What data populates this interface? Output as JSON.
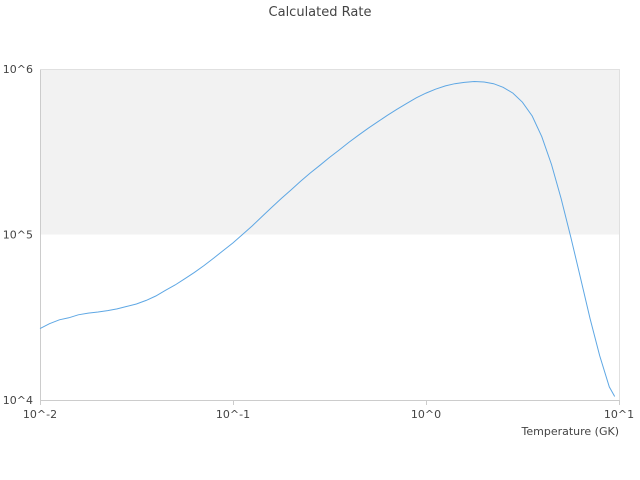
{
  "chart_data": {
    "type": "line",
    "title": "Calculated Rate",
    "xlabel": "Temperature (GK)",
    "ylabel": "",
    "xscale": "log",
    "yscale": "log",
    "xlim": [
      0.01,
      10
    ],
    "ylim": [
      10000,
      1000000
    ],
    "x_tick_labels": [
      "10^-2",
      "10^-1",
      "10^0",
      "10^1"
    ],
    "y_tick_labels": [
      "10^4",
      "10^5",
      "10^6"
    ],
    "band_color": "#f2f2f2",
    "line_color": "#5ea7e4",
    "grid": false,
    "legend": "none",
    "series": [
      {
        "values_x": [
          0.01,
          0.0112,
          0.0126,
          0.0141,
          0.0158,
          0.0178,
          0.02,
          0.0224,
          0.0251,
          0.0282,
          0.0316,
          0.0355,
          0.0398,
          0.0447,
          0.0501,
          0.0562,
          0.0631,
          0.0708,
          0.0794,
          0.0891,
          0.1,
          0.112,
          0.126,
          0.141,
          0.158,
          0.178,
          0.2,
          0.224,
          0.251,
          0.282,
          0.316,
          0.355,
          0.398,
          0.447,
          0.501,
          0.562,
          0.631,
          0.708,
          0.794,
          0.891,
          1.0,
          1.12,
          1.26,
          1.41,
          1.58,
          1.78,
          2.0,
          2.24,
          2.51,
          2.82,
          3.16,
          3.55,
          3.98,
          4.47,
          5.01,
          5.62,
          6.31,
          7.08,
          7.94,
          8.91,
          9.5
        ],
        "values_y": [
          27000,
          28900,
          30500,
          31400,
          32700,
          33500,
          34000,
          34700,
          35500,
          36800,
          38000,
          40000,
          42500,
          46000,
          49500,
          54000,
          59000,
          65000,
          72000,
          80000,
          89000,
          100000,
          113000,
          128000,
          145000,
          165000,
          186000,
          210000,
          235000,
          262000,
          292000,
          324000,
          360000,
          398000,
          438000,
          480000,
          525000,
          572000,
          620000,
          670000,
          715000,
          755000,
          790000,
          815000,
          830000,
          840000,
          835000,
          815000,
          775000,
          715000,
          630000,
          520000,
          390000,
          265000,
          165000,
          97000,
          55000,
          31000,
          18500,
          12000,
          10500
        ]
      }
    ]
  }
}
